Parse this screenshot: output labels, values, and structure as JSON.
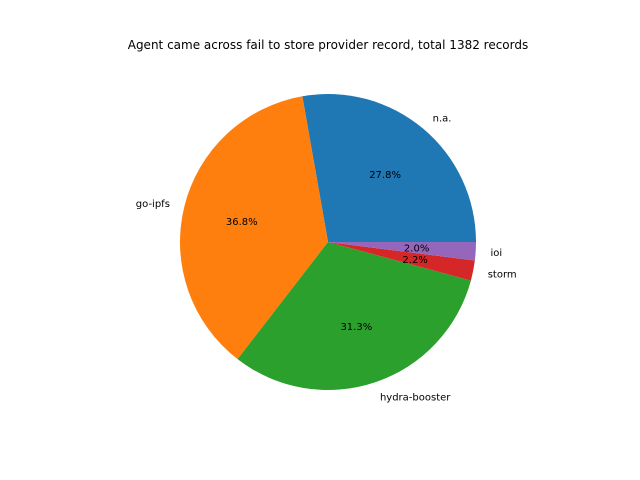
{
  "chart_data": {
    "type": "pie",
    "title": "Agent came across fail to store provider record, total 1382 records",
    "slices": [
      {
        "label": "n.a.",
        "value": 27.8,
        "pct_label": "27.8%",
        "color": "#1f77b4"
      },
      {
        "label": "go-ipfs",
        "value": 36.8,
        "pct_label": "36.8%",
        "color": "#ff7f0e"
      },
      {
        "label": "hydra-booster",
        "value": 31.3,
        "pct_label": "31.3%",
        "color": "#2ca02c"
      },
      {
        "label": "storm",
        "value": 2.2,
        "pct_label": "2.2%",
        "color": "#d62728"
      },
      {
        "label": "ioi",
        "value": 2.0,
        "pct_label": "2.0%",
        "color": "#9467bd"
      }
    ],
    "start_angle_deg": 0,
    "direction": "counterclockwise",
    "legend": "none"
  }
}
